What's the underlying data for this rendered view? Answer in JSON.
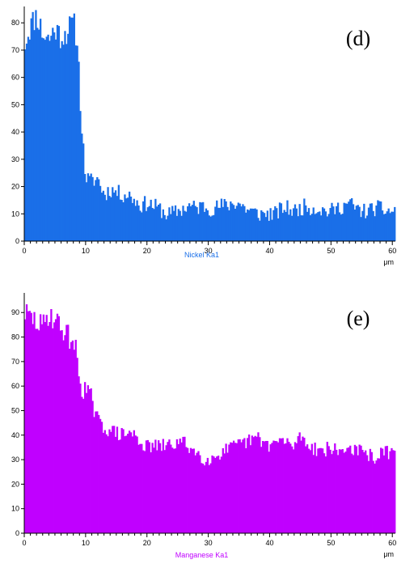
{
  "chart_data": [
    {
      "type": "bar",
      "panel_label": "(d)",
      "series_name": "Nickel Ka1",
      "color": "#1a6fe8",
      "x_unit": "μm",
      "xlim": [
        0,
        60.5
      ],
      "ylim": [
        0,
        86
      ],
      "x_ticks": [
        0,
        10,
        20,
        30,
        40,
        50,
        60
      ],
      "y_ticks": [
        0,
        10,
        20,
        30,
        40,
        50,
        60,
        70,
        80
      ],
      "profile": [
        [
          0,
          72
        ],
        [
          1,
          79
        ],
        [
          2,
          83
        ],
        [
          3,
          76
        ],
        [
          4,
          74
        ],
        [
          5,
          78
        ],
        [
          6,
          75
        ],
        [
          7,
          77
        ],
        [
          8,
          80
        ],
        [
          8.6,
          74
        ],
        [
          9,
          58
        ],
        [
          9.4,
          40
        ],
        [
          10,
          23
        ],
        [
          11,
          22
        ],
        [
          12,
          23
        ],
        [
          13,
          17
        ],
        [
          14,
          19
        ],
        [
          15,
          18
        ],
        [
          16,
          17
        ],
        [
          17,
          17
        ],
        [
          18,
          15
        ],
        [
          19,
          13
        ],
        [
          20,
          14
        ],
        [
          21,
          13
        ],
        [
          22,
          12
        ],
        [
          23,
          10
        ],
        [
          24,
          10
        ],
        [
          25,
          11
        ],
        [
          26,
          12
        ],
        [
          27,
          13
        ],
        [
          28,
          12
        ],
        [
          29,
          13
        ],
        [
          30,
          12
        ],
        [
          31,
          12
        ],
        [
          32,
          13
        ],
        [
          33,
          13
        ],
        [
          34,
          14
        ],
        [
          35,
          14
        ],
        [
          36,
          12
        ],
        [
          37,
          11
        ],
        [
          38,
          10
        ],
        [
          39,
          10
        ],
        [
          40,
          10
        ],
        [
          41,
          10
        ],
        [
          42,
          12
        ],
        [
          43,
          12
        ],
        [
          44,
          11
        ],
        [
          45,
          12
        ],
        [
          46,
          13
        ],
        [
          47,
          12
        ],
        [
          48,
          12
        ],
        [
          49,
          11
        ],
        [
          50,
          11
        ],
        [
          51,
          12
        ],
        [
          52,
          13
        ],
        [
          53,
          14
        ],
        [
          54,
          12
        ],
        [
          55,
          11
        ],
        [
          56,
          11
        ],
        [
          57,
          12
        ],
        [
          58,
          12
        ],
        [
          59,
          11
        ],
        [
          60,
          11
        ]
      ]
    },
    {
      "type": "bar",
      "panel_label": "(e)",
      "series_name": "Manganese Ka1",
      "color": "#c000ff",
      "x_unit": "μm",
      "xlim": [
        0,
        60.5
      ],
      "ylim": [
        0,
        98
      ],
      "x_ticks": [
        0,
        10,
        20,
        30,
        40,
        50,
        60
      ],
      "y_ticks": [
        0,
        10,
        20,
        30,
        40,
        50,
        60,
        70,
        80,
        90
      ],
      "profile": [
        [
          0,
          90
        ],
        [
          1,
          88
        ],
        [
          2,
          86
        ],
        [
          3,
          84
        ],
        [
          4,
          90
        ],
        [
          5,
          87
        ],
        [
          6,
          84
        ],
        [
          7,
          81
        ],
        [
          8,
          78
        ],
        [
          8.6,
          72
        ],
        [
          9,
          62
        ],
        [
          10,
          58
        ],
        [
          11,
          54
        ],
        [
          12,
          46
        ],
        [
          13,
          43
        ],
        [
          14,
          42
        ],
        [
          15,
          41
        ],
        [
          16,
          40
        ],
        [
          17,
          41
        ],
        [
          18,
          40
        ],
        [
          19,
          37
        ],
        [
          20,
          35
        ],
        [
          21,
          36
        ],
        [
          22,
          35
        ],
        [
          23,
          36
        ],
        [
          24,
          36
        ],
        [
          25,
          37
        ],
        [
          26,
          37
        ],
        [
          27,
          35
        ],
        [
          28,
          33
        ],
        [
          29,
          31
        ],
        [
          30,
          30
        ],
        [
          31,
          31
        ],
        [
          32,
          33
        ],
        [
          33,
          34
        ],
        [
          34,
          35
        ],
        [
          35,
          36
        ],
        [
          36,
          37
        ],
        [
          37,
          38
        ],
        [
          38,
          39
        ],
        [
          39,
          37
        ],
        [
          40,
          36
        ],
        [
          41,
          37
        ],
        [
          42,
          38
        ],
        [
          43,
          36
        ],
        [
          44,
          36
        ],
        [
          45,
          40
        ],
        [
          46,
          37
        ],
        [
          47,
          35
        ],
        [
          48,
          34
        ],
        [
          49,
          34
        ],
        [
          50,
          35
        ],
        [
          51,
          33
        ],
        [
          52,
          34
        ],
        [
          53,
          35
        ],
        [
          54,
          34
        ],
        [
          55,
          33
        ],
        [
          56,
          32
        ],
        [
          57,
          31
        ],
        [
          58,
          32
        ],
        [
          59,
          33
        ],
        [
          60,
          33
        ]
      ]
    }
  ]
}
